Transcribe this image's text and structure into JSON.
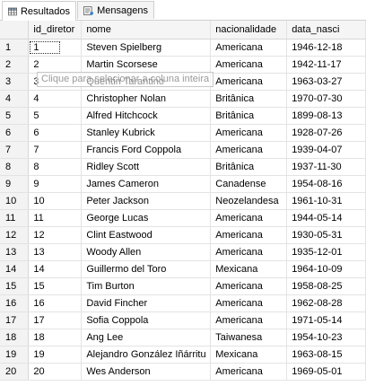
{
  "tabs": [
    {
      "label": "Resultados",
      "icon": "results-grid-icon"
    },
    {
      "label": "Mensagens",
      "icon": "messages-icon"
    }
  ],
  "grid": {
    "columns": [
      "",
      "id_diretor",
      "nome",
      "nacionalidade",
      "data_nasci"
    ],
    "tooltip": "Clique para selecionar a coluna inteira",
    "rows": [
      [
        "1",
        "1",
        "Steven Spielberg",
        "Americana",
        "1946-12-18"
      ],
      [
        "2",
        "2",
        "Martin Scorsese",
        "Americana",
        "1942-11-17"
      ],
      [
        "3",
        "3",
        "Quentin Tarantino",
        "Americana",
        "1963-03-27"
      ],
      [
        "4",
        "4",
        "Christopher Nolan",
        "Britânica",
        "1970-07-30"
      ],
      [
        "5",
        "5",
        "Alfred Hitchcock",
        "Britânica",
        "1899-08-13"
      ],
      [
        "6",
        "6",
        "Stanley Kubrick",
        "Americana",
        "1928-07-26"
      ],
      [
        "7",
        "7",
        "Francis Ford Coppola",
        "Americana",
        "1939-04-07"
      ],
      [
        "8",
        "8",
        "Ridley Scott",
        "Britânica",
        "1937-11-30"
      ],
      [
        "9",
        "9",
        "James Cameron",
        "Canadense",
        "1954-08-16"
      ],
      [
        "10",
        "10",
        "Peter Jackson",
        "Neozelandesa",
        "1961-10-31"
      ],
      [
        "11",
        "11",
        "George Lucas",
        "Americana",
        "1944-05-14"
      ],
      [
        "12",
        "12",
        "Clint Eastwood",
        "Americana",
        "1930-05-31"
      ],
      [
        "13",
        "13",
        "Woody Allen",
        "Americana",
        "1935-12-01"
      ],
      [
        "14",
        "14",
        "Guillermo del Toro",
        "Mexicana",
        "1964-10-09"
      ],
      [
        "15",
        "15",
        "Tim Burton",
        "Americana",
        "1958-08-25"
      ],
      [
        "16",
        "16",
        "David Fincher",
        "Americana",
        "1962-08-28"
      ],
      [
        "17",
        "17",
        "Sofia Coppola",
        "Americana",
        "1971-05-14"
      ],
      [
        "18",
        "18",
        "Ang Lee",
        "Taiwanesa",
        "1954-10-23"
      ],
      [
        "19",
        "19",
        "Alejandro González Iñárritu",
        "Mexicana",
        "1963-08-15"
      ],
      [
        "20",
        "20",
        "Wes Anderson",
        "Americana",
        "1969-05-01"
      ]
    ]
  }
}
